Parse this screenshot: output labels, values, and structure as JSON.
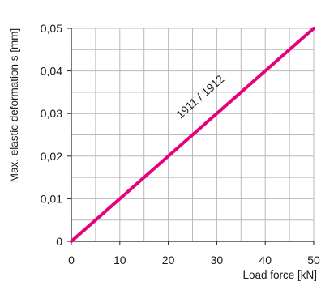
{
  "chart_data": {
    "type": "line",
    "title": "",
    "xlabel": "Load force [kN]",
    "ylabel": "Max. elastic deformation s [mm]",
    "xlim": [
      0,
      50
    ],
    "ylim": [
      0,
      0.05
    ],
    "x_ticks": [
      0,
      10,
      20,
      30,
      40,
      50
    ],
    "x_tick_labels": [
      "0",
      "10",
      "20",
      "30",
      "40",
      "50"
    ],
    "y_ticks": [
      0,
      0.01,
      0.02,
      0.03,
      0.04,
      0.05
    ],
    "y_tick_labels": [
      "0",
      "0,01",
      "0,02",
      "0,03",
      "0,04",
      "0,05"
    ],
    "grid": true,
    "series": [
      {
        "name": "1911 / 1912",
        "x": [
          0,
          50
        ],
        "y": [
          0,
          0.05
        ],
        "color": "#e6007e"
      }
    ]
  }
}
